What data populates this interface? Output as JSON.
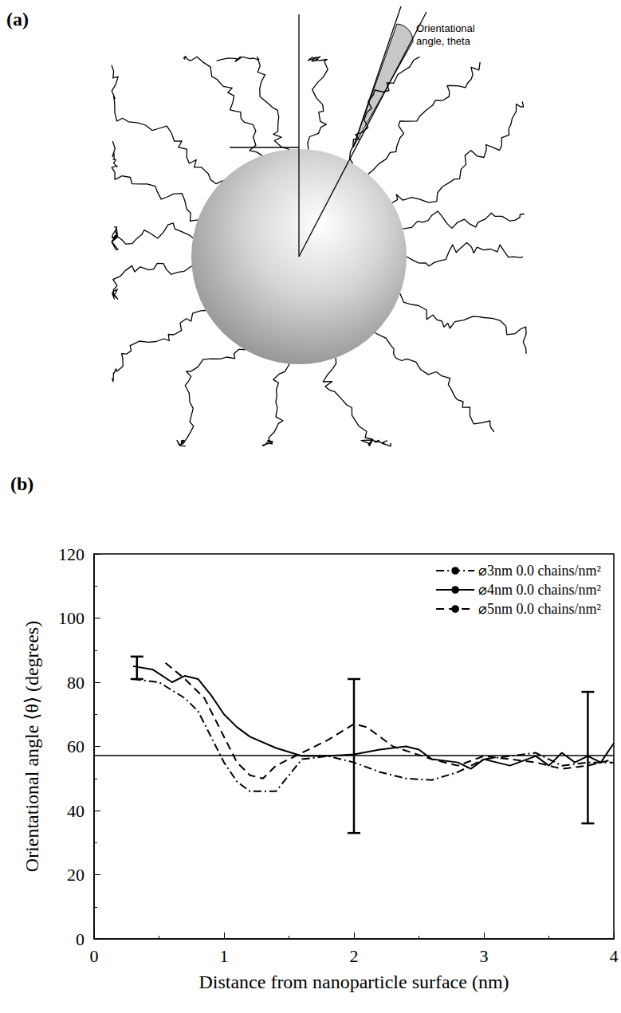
{
  "panel_a": {
    "label": "(a)",
    "annotation": [
      "Orientational",
      "angle, theta"
    ]
  },
  "chart_data": {
    "type": "line",
    "title": "(b)",
    "x_label": "Distance from nanoparticle surface (nm)",
    "y_label": "Orientational angle ⟨θ⟩ (degrees)",
    "xlim": [
      0,
      4
    ],
    "xticks": [
      0,
      1,
      2,
      3,
      4
    ],
    "ylim": [
      0,
      120
    ],
    "yticks": [
      0,
      20,
      40,
      60,
      80,
      100,
      120
    ],
    "grid": false,
    "legend": "upper right",
    "reference_line": 57.3,
    "error_bars": [
      {
        "x": 0.33,
        "low": 81,
        "high": 88
      },
      {
        "x": 2.0,
        "low": 33,
        "high": 81
      },
      {
        "x": 3.8,
        "low": 36,
        "high": 77
      }
    ],
    "series": [
      {
        "name": "⌀3nm 0.0 chains/nm²",
        "color": "#000000",
        "line_style": "dashdot",
        "x": [
          0.3,
          0.5,
          0.7,
          0.8,
          0.9,
          1.0,
          1.1,
          1.2,
          1.4,
          1.6,
          1.8,
          2.0,
          2.2,
          2.4,
          2.6,
          2.8,
          3.0,
          3.2,
          3.4,
          3.6,
          3.8,
          4.0
        ],
        "values": [
          81,
          80,
          75,
          71,
          63,
          55,
          49,
          46,
          46,
          56,
          57,
          55,
          52,
          50,
          49.5,
          52,
          56,
          57,
          58,
          54,
          55,
          55
        ]
      },
      {
        "name": "⌀4nm 0.0 chains/nm²",
        "color": "#000000",
        "line_style": "solid",
        "x": [
          0.3,
          0.45,
          0.6,
          0.7,
          0.8,
          0.9,
          1.0,
          1.1,
          1.2,
          1.4,
          1.6,
          1.8,
          2.0,
          2.2,
          2.4,
          2.5,
          2.6,
          2.8,
          2.9,
          3.0,
          3.2,
          3.4,
          3.5,
          3.6,
          3.7,
          3.8,
          3.9,
          4.0
        ],
        "values": [
          85,
          84,
          80,
          82,
          81,
          76,
          70,
          66,
          63,
          59.5,
          57,
          57,
          57.5,
          59,
          60,
          59,
          56,
          55,
          53,
          56,
          54,
          57,
          54,
          58,
          55,
          57,
          55,
          61
        ]
      },
      {
        "name": "⌀5nm 0.0 chains/nm²",
        "color": "#000000",
        "line_style": "dashed",
        "x": [
          0.55,
          0.7,
          0.85,
          1.0,
          1.1,
          1.2,
          1.3,
          1.4,
          1.6,
          1.8,
          2.0,
          2.1,
          2.3,
          2.6,
          2.8,
          3.0,
          3.2,
          3.4,
          3.6,
          3.8,
          4.0
        ],
        "values": [
          86,
          81,
          75,
          63,
          55,
          51,
          50,
          54,
          58,
          62,
          67,
          66,
          60,
          56,
          54,
          57,
          56,
          55,
          53,
          54,
          56
        ]
      }
    ]
  }
}
